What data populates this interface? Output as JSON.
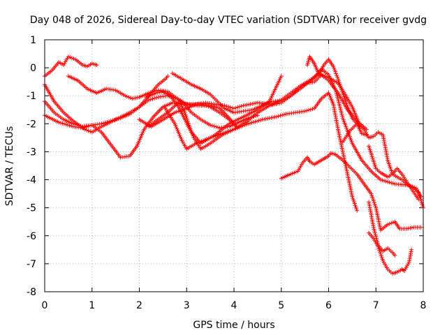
{
  "chart_data": {
    "type": "scatter",
    "title": "Day 048 of 2026, Sidereal Day-to-day VTEC variation (SDTVAR) for receiver gvdg",
    "xlabel": "GPS time / hours",
    "ylabel": "SDTVAR / TECUs",
    "xlim": [
      0,
      8
    ],
    "ylim": [
      -8,
      1
    ],
    "xticks": [
      0,
      1,
      2,
      3,
      4,
      5,
      6,
      7,
      8
    ],
    "yticks": [
      1,
      0,
      -1,
      -2,
      -3,
      -4,
      -5,
      -6,
      -7,
      -8
    ],
    "x_tick_labels": [
      "0",
      "1",
      "2",
      "3",
      "4",
      "5",
      "6",
      "7",
      "8"
    ],
    "y_tick_labels": [
      "1",
      "0",
      "-1",
      "-2",
      "-3",
      "-4",
      "-5",
      "-6",
      "-7",
      "-8"
    ],
    "grid": true,
    "marker": "plus",
    "color": "#ff0000",
    "series": [
      {
        "points": [
          [
            0,
            -0.3
          ],
          [
            0.15,
            -0.1
          ],
          [
            0.3,
            0.2
          ],
          [
            0.4,
            0.1
          ],
          [
            0.5,
            0.4
          ],
          [
            0.65,
            0.3
          ],
          [
            0.8,
            0.1
          ],
          [
            0.9,
            0.05
          ],
          [
            1.0,
            0.15
          ],
          [
            1.1,
            0.1
          ]
        ]
      },
      {
        "points": [
          [
            0.5,
            -0.3
          ],
          [
            0.7,
            -0.45
          ],
          [
            0.9,
            -0.75
          ],
          [
            1.1,
            -0.9
          ],
          [
            1.3,
            -0.75
          ],
          [
            1.5,
            -0.8
          ],
          [
            1.7,
            -1.0
          ],
          [
            1.85,
            -1.1
          ],
          [
            2.0,
            -1.05
          ],
          [
            2.2,
            -0.9
          ],
          [
            2.4,
            -0.8
          ],
          [
            2.6,
            -0.85
          ],
          [
            2.8,
            -1.1
          ],
          [
            3.0,
            -1.3
          ],
          [
            3.2,
            -1.35
          ],
          [
            3.5,
            -1.35
          ],
          [
            3.7,
            -1.45
          ],
          [
            3.9,
            -1.8
          ],
          [
            4.0,
            -2.0
          ]
        ]
      },
      {
        "points": [
          [
            0,
            -0.6
          ],
          [
            0.2,
            -1.2
          ],
          [
            0.4,
            -1.6
          ],
          [
            0.6,
            -1.9
          ],
          [
            0.85,
            -2.2
          ],
          [
            1.0,
            -2.3
          ],
          [
            1.2,
            -2.1
          ],
          [
            1.5,
            -1.85
          ],
          [
            1.8,
            -1.6
          ],
          [
            2.0,
            -1.4
          ],
          [
            2.2,
            -1.15
          ],
          [
            2.4,
            -1.05
          ],
          [
            2.6,
            -1.0
          ],
          [
            2.8,
            -1.1
          ],
          [
            2.95,
            -1.3
          ],
          [
            3.1,
            -1.6
          ],
          [
            3.3,
            -1.85
          ],
          [
            3.5,
            -2.05
          ],
          [
            3.7,
            -2.15
          ],
          [
            3.9,
            -2.1
          ],
          [
            4.1,
            -1.95
          ],
          [
            4.3,
            -1.8
          ],
          [
            4.5,
            -1.7
          ]
        ]
      },
      {
        "points": [
          [
            0,
            -1.7
          ],
          [
            0.3,
            -1.95
          ],
          [
            0.6,
            -2.1
          ],
          [
            0.8,
            -2.15
          ],
          [
            1.0,
            -2.05
          ],
          [
            1.2,
            -2.3
          ],
          [
            1.4,
            -2.75
          ],
          [
            1.6,
            -3.2
          ],
          [
            1.8,
            -3.15
          ],
          [
            1.95,
            -2.8
          ],
          [
            2.1,
            -2.2
          ],
          [
            2.3,
            -1.75
          ],
          [
            2.5,
            -1.4
          ],
          [
            2.7,
            -1.25
          ],
          [
            2.9,
            -1.3
          ],
          [
            3.1,
            -1.3
          ],
          [
            3.3,
            -1.3
          ],
          [
            3.5,
            -1.4
          ],
          [
            3.7,
            -1.6
          ],
          [
            3.9,
            -1.85
          ],
          [
            4.05,
            -2.1
          ]
        ]
      },
      {
        "points": [
          [
            0,
            -1.2
          ],
          [
            0.2,
            -1.6
          ],
          [
            0.4,
            -1.85
          ],
          [
            0.6,
            -2.0
          ],
          [
            0.8,
            -2.1
          ],
          [
            1.0,
            -2.05
          ],
          [
            1.2,
            -2.0
          ],
          [
            1.4,
            -1.9
          ],
          [
            1.6,
            -1.8
          ],
          [
            1.8,
            -1.65
          ],
          [
            2.0,
            -1.4
          ],
          [
            2.2,
            -1.0
          ],
          [
            2.4,
            -0.6
          ],
          [
            2.55,
            -0.4
          ],
          [
            2.6,
            -0.3
          ]
        ]
      },
      {
        "points": [
          [
            2.15,
            -1.05
          ],
          [
            2.35,
            -0.9
          ],
          [
            2.5,
            -0.85
          ],
          [
            2.65,
            -1.0
          ],
          [
            2.8,
            -1.3
          ],
          [
            2.95,
            -1.8
          ],
          [
            3.1,
            -2.3
          ],
          [
            3.3,
            -2.7
          ],
          [
            3.6,
            -2.4
          ],
          [
            3.9,
            -2.0
          ],
          [
            4.2,
            -1.75
          ],
          [
            4.5,
            -1.5
          ],
          [
            4.75,
            -1.2
          ],
          [
            5.0,
            -0.3
          ]
        ]
      },
      {
        "points": [
          [
            2.0,
            -1.85
          ],
          [
            2.25,
            -2.1
          ],
          [
            2.5,
            -1.85
          ],
          [
            2.75,
            -1.6
          ],
          [
            3.0,
            -1.45
          ],
          [
            3.2,
            -1.3
          ],
          [
            3.4,
            -1.25
          ],
          [
            3.6,
            -1.3
          ],
          [
            3.8,
            -1.35
          ],
          [
            4.0,
            -1.45
          ],
          [
            4.2,
            -1.35
          ],
          [
            4.5,
            -1.25
          ],
          [
            4.8,
            -1.3
          ],
          [
            5.0,
            -1.15
          ],
          [
            5.2,
            -0.9
          ],
          [
            5.4,
            -0.65
          ],
          [
            5.6,
            -0.45
          ],
          [
            5.8,
            -0.2
          ],
          [
            6.0,
            -0.45
          ],
          [
            6.2,
            -0.9
          ],
          [
            6.4,
            -1.5
          ],
          [
            6.6,
            -1.9
          ],
          [
            6.8,
            -2.2
          ]
        ]
      },
      {
        "points": [
          [
            2.2,
            -2.1
          ],
          [
            2.35,
            -1.9
          ],
          [
            2.6,
            -1.6
          ],
          [
            2.85,
            -1.2
          ],
          [
            2.95,
            -1.55
          ],
          [
            3.05,
            -2.05
          ],
          [
            3.15,
            -2.5
          ],
          [
            3.3,
            -2.9
          ],
          [
            3.5,
            -2.7
          ],
          [
            3.75,
            -2.4
          ],
          [
            4.0,
            -2.2
          ],
          [
            4.3,
            -2.0
          ],
          [
            4.6,
            -1.85
          ],
          [
            4.9,
            -1.75
          ],
          [
            5.1,
            -1.65
          ],
          [
            5.3,
            -1.6
          ],
          [
            5.5,
            -1.55
          ],
          [
            5.7,
            -1.45
          ],
          [
            5.85,
            -1.1
          ],
          [
            6.0,
            -0.9
          ],
          [
            6.1,
            -1.3
          ],
          [
            6.2,
            -2.2
          ],
          [
            6.3,
            -3.0
          ],
          [
            6.4,
            -3.8
          ],
          [
            6.5,
            -4.6
          ],
          [
            6.6,
            -5.1
          ]
        ]
      },
      {
        "points": [
          [
            2.55,
            -1.45
          ],
          [
            2.75,
            -2.0
          ],
          [
            2.9,
            -2.6
          ],
          [
            3.0,
            -2.9
          ],
          [
            3.2,
            -2.7
          ],
          [
            3.5,
            -2.5
          ],
          [
            3.75,
            -2.35
          ],
          [
            4.0,
            -2.2
          ],
          [
            4.25,
            -1.95
          ],
          [
            4.5,
            -1.6
          ],
          [
            4.75,
            -1.35
          ],
          [
            5.0,
            -1.25
          ],
          [
            5.2,
            -1.0
          ],
          [
            5.4,
            -0.7
          ],
          [
            5.55,
            -0.55
          ],
          [
            5.7,
            -0.35
          ],
          [
            5.85,
            -0.05
          ],
          [
            6.0,
            -0.25
          ],
          [
            6.15,
            -0.8
          ],
          [
            6.3,
            -1.8
          ],
          [
            6.5,
            -2.7
          ],
          [
            6.7,
            -3.3
          ],
          [
            6.9,
            -3.7
          ],
          [
            7.1,
            -4.0
          ],
          [
            7.4,
            -4.15
          ],
          [
            7.7,
            -4.2
          ],
          [
            7.9,
            -4.7
          ]
        ]
      },
      {
        "points": [
          [
            2.7,
            -0.2
          ],
          [
            2.9,
            -0.4
          ],
          [
            3.1,
            -0.6
          ],
          [
            3.3,
            -0.75
          ],
          [
            3.5,
            -0.95
          ],
          [
            3.65,
            -1.2
          ],
          [
            3.8,
            -1.45
          ],
          [
            4.0,
            -1.6
          ],
          [
            4.2,
            -1.55
          ],
          [
            4.4,
            -1.5
          ],
          [
            4.6,
            -1.35
          ],
          [
            4.8,
            -1.2
          ],
          [
            5.0,
            -1.2
          ],
          [
            5.2,
            -1.0
          ],
          [
            5.4,
            -0.75
          ],
          [
            5.55,
            -0.55
          ],
          [
            5.7,
            -0.5
          ],
          [
            5.85,
            -0.25
          ],
          [
            6.0,
            -0.35
          ],
          [
            6.2,
            -0.55
          ],
          [
            6.35,
            -0.95
          ],
          [
            6.5,
            -1.4
          ],
          [
            6.6,
            -1.8
          ],
          [
            6.65,
            -2.1
          ]
        ]
      },
      {
        "points": [
          [
            5.55,
            0.1
          ],
          [
            5.6,
            0.4
          ],
          [
            5.7,
            0.15
          ],
          [
            5.8,
            -0.25
          ],
          [
            5.9,
            0.1
          ],
          [
            6.0,
            0.3
          ],
          [
            6.1,
            0.05
          ],
          [
            6.2,
            -0.4
          ],
          [
            6.3,
            -0.9
          ],
          [
            6.4,
            -1.4
          ],
          [
            6.5,
            -1.8
          ],
          [
            6.6,
            -2.0
          ],
          [
            6.7,
            -2.35
          ],
          [
            6.8,
            -2.4
          ]
        ]
      },
      {
        "points": [
          [
            5.0,
            -3.95
          ],
          [
            5.2,
            -3.8
          ],
          [
            5.35,
            -3.7
          ],
          [
            5.45,
            -3.4
          ],
          [
            5.55,
            -3.2
          ],
          [
            5.6,
            -3.35
          ],
          [
            5.7,
            -3.45
          ],
          [
            5.85,
            -3.3
          ],
          [
            6.0,
            -3.15
          ],
          [
            6.05,
            -3.05
          ],
          [
            6.15,
            -3.1
          ],
          [
            6.3,
            -3.3
          ],
          [
            6.45,
            -3.55
          ],
          [
            6.6,
            -3.8
          ],
          [
            6.75,
            -4.15
          ],
          [
            6.9,
            -4.5
          ],
          [
            7.0,
            -5.0
          ],
          [
            7.1,
            -5.8
          ],
          [
            7.25,
            -5.6
          ],
          [
            7.4,
            -5.5
          ],
          [
            7.5,
            -5.75
          ],
          [
            7.65,
            -5.75
          ],
          [
            7.8,
            -5.7
          ],
          [
            7.95,
            -5.7
          ]
        ]
      },
      {
        "points": [
          [
            6.3,
            -2.65
          ],
          [
            6.45,
            -2.25
          ],
          [
            6.6,
            -2.0
          ],
          [
            6.75,
            -2.2
          ],
          [
            6.85,
            -2.5
          ],
          [
            6.95,
            -2.45
          ],
          [
            7.05,
            -2.3
          ],
          [
            7.15,
            -2.4
          ],
          [
            7.25,
            -3.3
          ],
          [
            7.35,
            -3.8
          ],
          [
            7.45,
            -3.9
          ],
          [
            7.55,
            -4.0
          ],
          [
            7.65,
            -4.15
          ],
          [
            7.8,
            -4.3
          ],
          [
            7.9,
            -4.45
          ],
          [
            8.0,
            -5.0
          ]
        ]
      },
      {
        "points": [
          [
            6.85,
            -4.8
          ],
          [
            6.95,
            -5.7
          ],
          [
            7.05,
            -6.35
          ],
          [
            7.15,
            -6.55
          ],
          [
            7.25,
            -6.45
          ],
          [
            7.35,
            -6.6
          ],
          [
            7.4,
            -6.7
          ]
        ]
      },
      {
        "points": [
          [
            6.85,
            -5.9
          ],
          [
            6.95,
            -6.1
          ],
          [
            7.05,
            -6.4
          ],
          [
            7.15,
            -6.9
          ],
          [
            7.25,
            -7.2
          ],
          [
            7.35,
            -7.35
          ],
          [
            7.45,
            -7.3
          ],
          [
            7.55,
            -7.2
          ],
          [
            7.6,
            -7.25
          ],
          [
            7.7,
            -6.95
          ],
          [
            7.75,
            -6.5
          ]
        ]
      },
      {
        "points": [
          [
            6.85,
            -2.8
          ],
          [
            7.0,
            -3.6
          ],
          [
            7.1,
            -3.75
          ],
          [
            7.25,
            -3.9
          ],
          [
            7.35,
            -3.8
          ],
          [
            7.45,
            -3.6
          ],
          [
            7.55,
            -3.8
          ],
          [
            7.7,
            -4.2
          ],
          [
            7.85,
            -4.3
          ],
          [
            7.95,
            -4.6
          ]
        ]
      }
    ]
  }
}
